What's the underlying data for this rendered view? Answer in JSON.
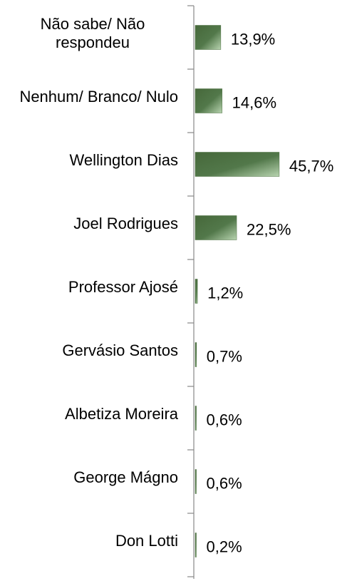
{
  "chart_data": {
    "type": "barh",
    "categories": [
      "Não sabe/ Não respondeu",
      "Nenhum/ Branco/ Nulo",
      "Wellington Dias",
      "Joel Rodrigues",
      "Professor Ajosé",
      "Gervásio Santos",
      "Albetiza Moreira",
      "George Mágno",
      "Don Lotti"
    ],
    "values": [
      13.9,
      14.6,
      45.7,
      22.5,
      1.2,
      0.7,
      0.6,
      0.6,
      0.2
    ],
    "value_labels": [
      "13,9%",
      "14,6%",
      "45,7%",
      "22,5%",
      "1,2%",
      "0,7%",
      "0,6%",
      "0,6%",
      "0,2%"
    ],
    "color": "#4b6e3f"
  }
}
